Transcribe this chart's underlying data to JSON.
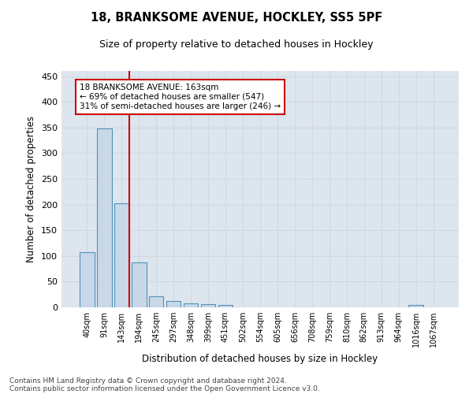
{
  "title": "18, BRANKSOME AVENUE, HOCKLEY, SS5 5PF",
  "subtitle": "Size of property relative to detached houses in Hockley",
  "xlabel": "Distribution of detached houses by size in Hockley",
  "ylabel": "Number of detached properties",
  "footnote1": "Contains HM Land Registry data © Crown copyright and database right 2024.",
  "footnote2": "Contains public sector information licensed under the Open Government Licence v3.0.",
  "bin_labels": [
    "40sqm",
    "91sqm",
    "143sqm",
    "194sqm",
    "245sqm",
    "297sqm",
    "348sqm",
    "399sqm",
    "451sqm",
    "502sqm",
    "554sqm",
    "605sqm",
    "656sqm",
    "708sqm",
    "759sqm",
    "810sqm",
    "862sqm",
    "913sqm",
    "964sqm",
    "1016sqm",
    "1067sqm"
  ],
  "bar_heights": [
    107,
    348,
    202,
    88,
    22,
    13,
    8,
    6,
    4,
    0,
    0,
    0,
    0,
    0,
    0,
    0,
    0,
    0,
    0,
    4,
    0
  ],
  "bar_color": "#c8d8e8",
  "bar_edge_color": "#5590b8",
  "grid_color": "#d0d8e0",
  "background_color": "#dde6ef",
  "red_line_color": "#cc0000",
  "annotation_text": "18 BRANKSOME AVENUE: 163sqm\n← 69% of detached houses are smaller (547)\n31% of semi-detached houses are larger (246) →",
  "annotation_box_color": "#ffffff",
  "annotation_box_edge_color": "#cc0000",
  "ylim": [
    0,
    460
  ],
  "yticks": [
    0,
    50,
    100,
    150,
    200,
    250,
    300,
    350,
    400,
    450
  ],
  "red_line_bar_index": 2
}
